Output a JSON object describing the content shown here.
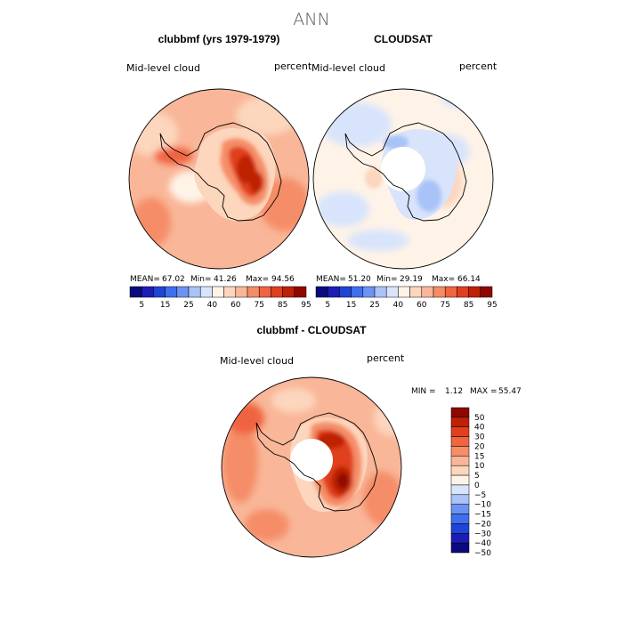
{
  "page_title": "ANN",
  "color_scale": [
    "#0a0a7d",
    "#1d1db5",
    "#1f45d6",
    "#3f6fee",
    "#6c93f3",
    "#a9c2f8",
    "#d8e4fb",
    "#fff3e8",
    "#fcd6bd",
    "#f9b698",
    "#f58d67",
    "#f0643f",
    "#e0401d",
    "#bf2006",
    "#8e0800"
  ],
  "colors": {
    "ocean_light": "#fbd3bb",
    "hole": "#ffffff",
    "coast": "#000000"
  },
  "panels": [
    {
      "id": "model",
      "title": "clubbmf (yrs 1979-1979)",
      "left_label": "Mid-level cloud",
      "right_label": "percent",
      "stats": {
        "mean_label": "MEAN=",
        "mean": "67.02",
        "min_label": "Min=",
        "min": "41.26",
        "max_label": "Max=",
        "max": "94.56"
      },
      "colorbar_labels": [
        "5",
        "15",
        "25",
        "40",
        "60",
        "75",
        "85",
        "95"
      ]
    },
    {
      "id": "obs",
      "title": "CLOUDSAT",
      "left_label": "Mid-level cloud",
      "right_label": "percent",
      "stats": {
        "mean_label": "MEAN=",
        "mean": "51.20",
        "min_label": "Min=",
        "min": "29.19",
        "max_label": "Max=",
        "max": "66.14"
      },
      "colorbar_labels": [
        "5",
        "15",
        "25",
        "40",
        "60",
        "75",
        "85",
        "95"
      ]
    },
    {
      "id": "diff",
      "title": "clubbmf - CLOUDSAT",
      "left_label": "Mid-level cloud",
      "right_label": "percent",
      "stats": {
        "min_label": "MIN =",
        "min": "1.12",
        "max_label": "MAX =",
        "max": "55.47"
      },
      "colorbar_labels": [
        "50",
        "40",
        "30",
        "20",
        "15",
        "10",
        "5",
        "0",
        "−5",
        "−10",
        "−15",
        "−20",
        "−30",
        "−40",
        "−50"
      ]
    }
  ]
}
